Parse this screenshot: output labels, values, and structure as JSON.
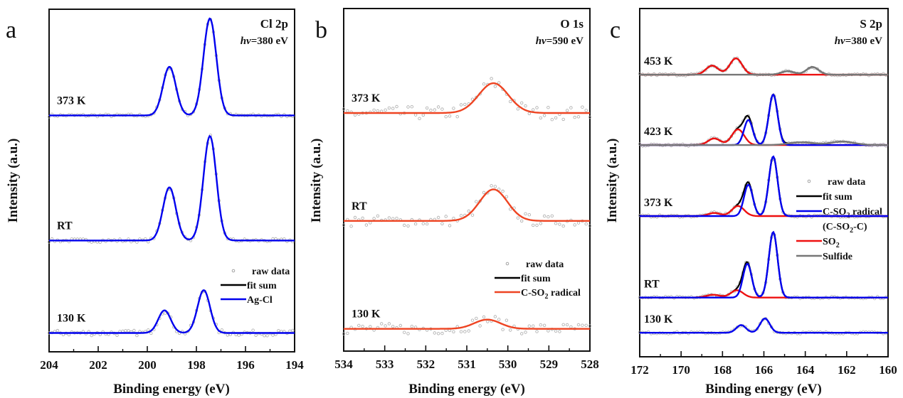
{
  "chart_data": [
    {
      "type": "line",
      "panel_letter": "a",
      "title": "Cl 2p",
      "photon_energy_prefix": "hv",
      "photon_energy_value": "=380 eV",
      "xlabel": "Binding energy (eV)",
      "ylabel": "Intensity (a.u.)",
      "xlim": [
        204,
        194
      ],
      "x_ticks": [
        "204",
        "202",
        "200",
        "198",
        "196",
        "194"
      ],
      "x_tick_values": [
        204,
        202,
        200,
        198,
        196,
        194
      ],
      "x_minor_tick_values": [
        203,
        201,
        199,
        197,
        195
      ],
      "legend": [
        {
          "label": "raw data",
          "style": "marker",
          "color": "#999999"
        },
        {
          "label": "fit sum",
          "style": "line",
          "color": "#000000"
        },
        {
          "label": "Ag-Cl",
          "style": "line",
          "color": "#0000ee"
        }
      ],
      "spectra": [
        {
          "label": "373 K",
          "offset": 0.69,
          "noise": 0.004,
          "components": [
            {
              "name": "Ag-Cl",
              "color": "#0000ee",
              "peaks": [
                {
                  "center": 199.1,
                  "height": 0.142,
                  "fwhm": 0.62
                },
                {
                  "center": 197.45,
                  "height": 0.283,
                  "fwhm": 0.62
                }
              ]
            }
          ]
        },
        {
          "label": "RT",
          "offset": 0.325,
          "noise": 0.005,
          "components": [
            {
              "name": "Ag-Cl",
              "color": "#0000ee",
              "peaks": [
                {
                  "center": 199.1,
                  "height": 0.155,
                  "fwhm": 0.62
                },
                {
                  "center": 197.45,
                  "height": 0.305,
                  "fwhm": 0.62
                }
              ]
            }
          ]
        },
        {
          "label": "130 K",
          "offset": 0.055,
          "noise": 0.008,
          "components": [
            {
              "name": "Ag-Cl",
              "color": "#0000ee",
              "peaks": [
                {
                  "center": 199.3,
                  "height": 0.066,
                  "fwhm": 0.6
                },
                {
                  "center": 197.7,
                  "height": 0.125,
                  "fwhm": 0.6
                }
              ]
            }
          ]
        }
      ]
    },
    {
      "type": "line",
      "panel_letter": "b",
      "title": "O 1s",
      "photon_energy_prefix": "hv",
      "photon_energy_value": "=590 eV",
      "xlabel": "Binding energy (eV)",
      "ylabel": "Intensity (a.u.)",
      "xlim": [
        534,
        528
      ],
      "x_ticks": [
        "534",
        "533",
        "532",
        "531",
        "530",
        "529",
        "528"
      ],
      "x_tick_values": [
        534,
        533,
        532,
        531,
        530,
        529,
        528
      ],
      "x_minor_tick_values": [
        533.5,
        532.5,
        531.5,
        530.5,
        529.5,
        528.5
      ],
      "legend": [
        {
          "label": "raw data",
          "style": "marker",
          "color": "#999999"
        },
        {
          "label": "fit sum",
          "style": "line",
          "color": "#000000"
        },
        {
          "label": "C-SO",
          "sub": "2",
          "label_after": " radical",
          "style": "line",
          "color": "#ee4422"
        }
      ],
      "spectra": [
        {
          "label": "373 K",
          "offset": 0.695,
          "noise": 0.012,
          "components": [
            {
              "name": "C-SO2 radical",
              "color": "#ee4422",
              "peaks": [
                {
                  "center": 530.35,
                  "height": 0.087,
                  "fwhm": 0.85
                }
              ]
            }
          ]
        },
        {
          "label": "RT",
          "offset": 0.38,
          "noise": 0.01,
          "components": [
            {
              "name": "C-SO2 radical",
              "color": "#ee4422",
              "peaks": [
                {
                  "center": 530.35,
                  "height": 0.092,
                  "fwhm": 0.8
                }
              ]
            }
          ]
        },
        {
          "label": "130 K",
          "offset": 0.065,
          "noise": 0.01,
          "components": [
            {
              "name": "C-SO2 radical",
              "color": "#ee4422",
              "peaks": [
                {
                  "center": 530.5,
                  "height": 0.027,
                  "fwhm": 0.75
                }
              ]
            }
          ]
        }
      ]
    },
    {
      "type": "line",
      "panel_letter": "c",
      "title": "S 2p",
      "photon_energy_prefix": "hv",
      "photon_energy_value": "=380 eV",
      "xlabel": "Binding energy (eV)",
      "ylabel": "Intensity (a.u.)",
      "xlim": [
        172,
        160
      ],
      "x_ticks": [
        "172",
        "170",
        "168",
        "166",
        "164",
        "162",
        "160"
      ],
      "x_tick_values": [
        172,
        170,
        168,
        166,
        164,
        162,
        160
      ],
      "x_minor_tick_values": [
        171,
        169,
        167,
        165,
        163,
        161
      ],
      "legend": [
        {
          "label": "raw data",
          "style": "marker",
          "color": "#999999"
        },
        {
          "label": "fit sum",
          "style": "line",
          "color": "#000000"
        },
        {
          "label": "C-SO",
          "sub": "2",
          "label_after": " radical",
          "style": "line",
          "color": "#0000ee"
        },
        {
          "label": "(C-SO",
          "sub": "2",
          "label_after": "-C)",
          "style": "none",
          "color": "#0000ee"
        },
        {
          "label": "SO",
          "sub": "2",
          "label_after": "",
          "style": "line",
          "color": "#ee1111"
        },
        {
          "label": "Sulfide",
          "style": "line",
          "color": "#777777"
        }
      ],
      "spectra": [
        {
          "label": "453 K",
          "offset": 0.81,
          "noise": 0.003,
          "components": [
            {
              "name": "SO2",
              "color": "#ee1111",
              "peaks": [
                {
                  "center": 168.5,
                  "height": 0.026,
                  "fwhm": 0.7
                },
                {
                  "center": 167.35,
                  "height": 0.047,
                  "fwhm": 0.7
                }
              ]
            },
            {
              "name": "Sulfide",
              "color": "#777777",
              "peaks": [
                {
                  "center": 164.85,
                  "height": 0.01,
                  "fwhm": 0.75
                },
                {
                  "center": 163.65,
                  "height": 0.022,
                  "fwhm": 0.7
                }
              ]
            }
          ]
        },
        {
          "label": "423 K",
          "offset": 0.608,
          "noise": 0.003,
          "components": [
            {
              "name": "SO2",
              "color": "#ee1111",
              "peaks": [
                {
                  "center": 168.4,
                  "height": 0.019,
                  "fwhm": 0.7
                },
                {
                  "center": 167.25,
                  "height": 0.045,
                  "fwhm": 0.7
                }
              ]
            },
            {
              "name": "C-SO2 radical",
              "color": "#0000ee",
              "peaks": [
                {
                  "center": 166.75,
                  "height": 0.072,
                  "fwhm": 0.5
                },
                {
                  "center": 165.55,
                  "height": 0.145,
                  "fwhm": 0.5
                }
              ]
            },
            {
              "name": "Sulfide",
              "color": "#777777",
              "peaks": [
                {
                  "center": 164.2,
                  "height": 0.008,
                  "fwhm": 1.4
                },
                {
                  "center": 162.2,
                  "height": 0.01,
                  "fwhm": 1.3
                }
              ]
            }
          ]
        },
        {
          "label": "373 K",
          "offset": 0.404,
          "noise": 0.003,
          "components": [
            {
              "name": "SO2",
              "color": "#ee1111",
              "peaks": [
                {
                  "center": 168.4,
                  "height": 0.009,
                  "fwhm": 0.7
                },
                {
                  "center": 167.25,
                  "height": 0.029,
                  "fwhm": 0.7
                }
              ]
            },
            {
              "name": "C-SO2 radical",
              "color": "#0000ee",
              "peaks": [
                {
                  "center": 166.75,
                  "height": 0.09,
                  "fwhm": 0.5
                },
                {
                  "center": 165.55,
                  "height": 0.171,
                  "fwhm": 0.5
                }
              ]
            }
          ]
        },
        {
          "label": "RT",
          "offset": 0.17,
          "noise": 0.003,
          "components": [
            {
              "name": "SO2",
              "color": "#ee1111",
              "peaks": [
                {
                  "center": 168.45,
                  "height": 0.008,
                  "fwhm": 0.8
                },
                {
                  "center": 167.3,
                  "height": 0.021,
                  "fwhm": 0.7
                }
              ]
            },
            {
              "name": "C-SO2 radical",
              "color": "#0000ee",
              "peaks": [
                {
                  "center": 166.8,
                  "height": 0.097,
                  "fwhm": 0.5
                },
                {
                  "center": 165.55,
                  "height": 0.188,
                  "fwhm": 0.5
                }
              ]
            }
          ]
        },
        {
          "label": "130 K",
          "offset": 0.069,
          "noise": 0.003,
          "components": [
            {
              "name": "C-SO2 radical",
              "color": "#0000ee",
              "peaks": [
                {
                  "center": 167.1,
                  "height": 0.022,
                  "fwhm": 0.55
                },
                {
                  "center": 165.95,
                  "height": 0.041,
                  "fwhm": 0.55
                }
              ]
            }
          ]
        }
      ]
    }
  ]
}
